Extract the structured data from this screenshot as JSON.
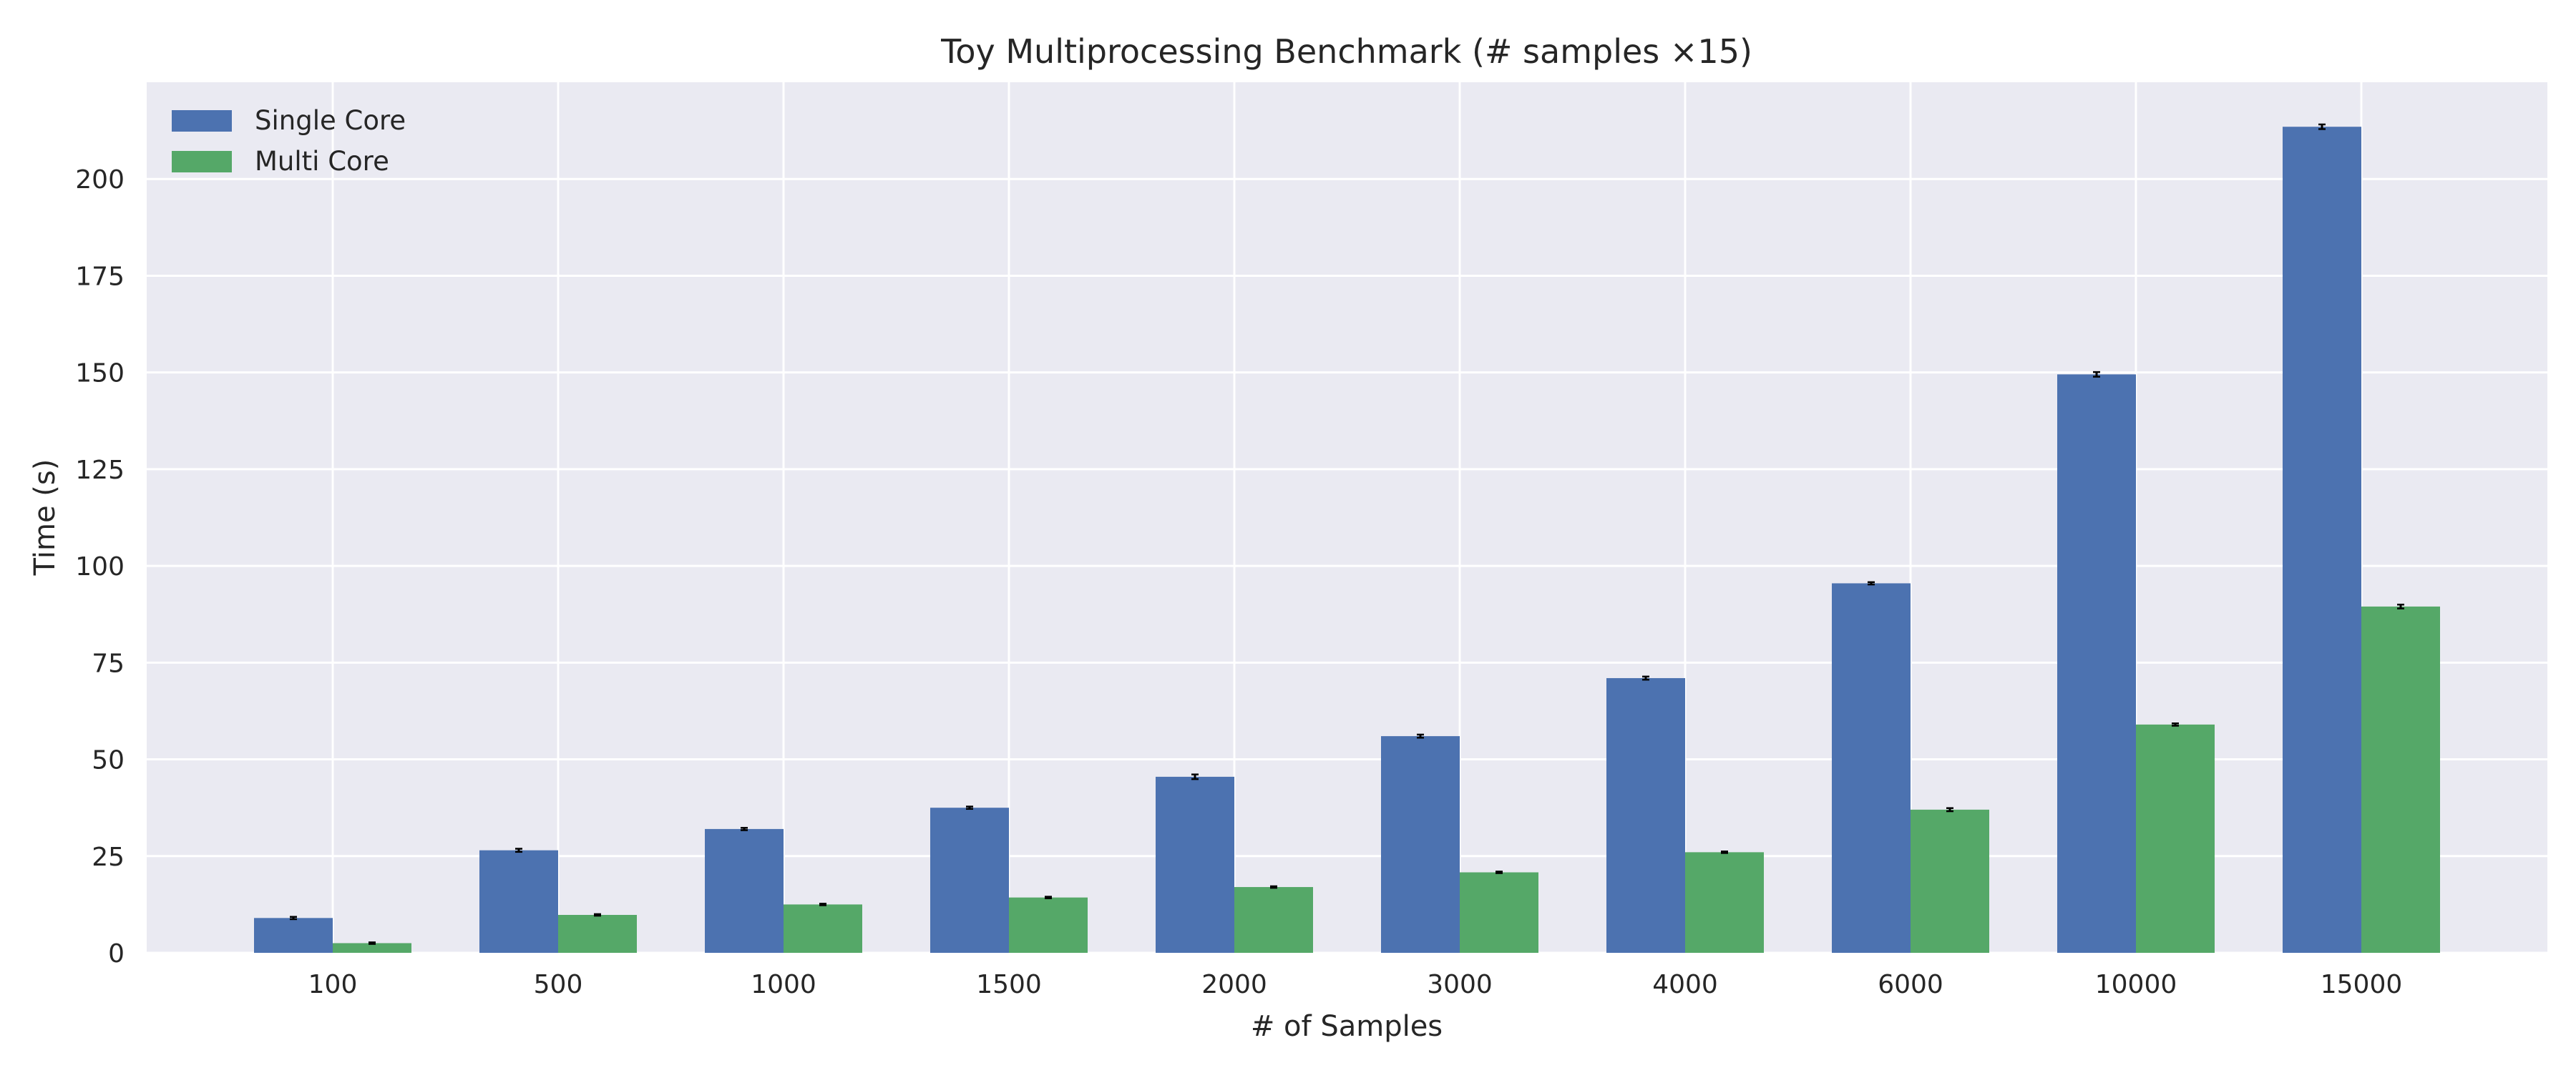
{
  "chart_data": {
    "type": "bar",
    "title": "Toy Multiprocessing Benchmark (# samples ×15)",
    "xlabel": "# of Samples",
    "ylabel": "Time (s)",
    "categories": [
      "100",
      "500",
      "1000",
      "1500",
      "2000",
      "3000",
      "4000",
      "6000",
      "10000",
      "15000"
    ],
    "series": [
      {
        "name": "Single Core",
        "color": "#4c72b0",
        "values": [
          9,
          26.5,
          32,
          37.5,
          45.5,
          56,
          71,
          95.5,
          149.5,
          213.5
        ],
        "errors": [
          0.3,
          0.4,
          0.3,
          0.3,
          0.6,
          0.4,
          0.4,
          0.3,
          0.6,
          0.6
        ]
      },
      {
        "name": "Multi Core",
        "color": "#55a868",
        "values": [
          2.5,
          9.8,
          12.5,
          14.3,
          17,
          20.8,
          26,
          37,
          59,
          89.5
        ],
        "errors": [
          0.2,
          0.2,
          0.2,
          0.2,
          0.2,
          0.2,
          0.2,
          0.4,
          0.3,
          0.5
        ]
      }
    ],
    "ylim": [
      0,
      225
    ],
    "yticks": [
      0,
      25,
      50,
      75,
      100,
      125,
      150,
      175,
      200
    ],
    "grid": true,
    "legend_position": "top-left",
    "background_color": "#eaeaf2"
  }
}
